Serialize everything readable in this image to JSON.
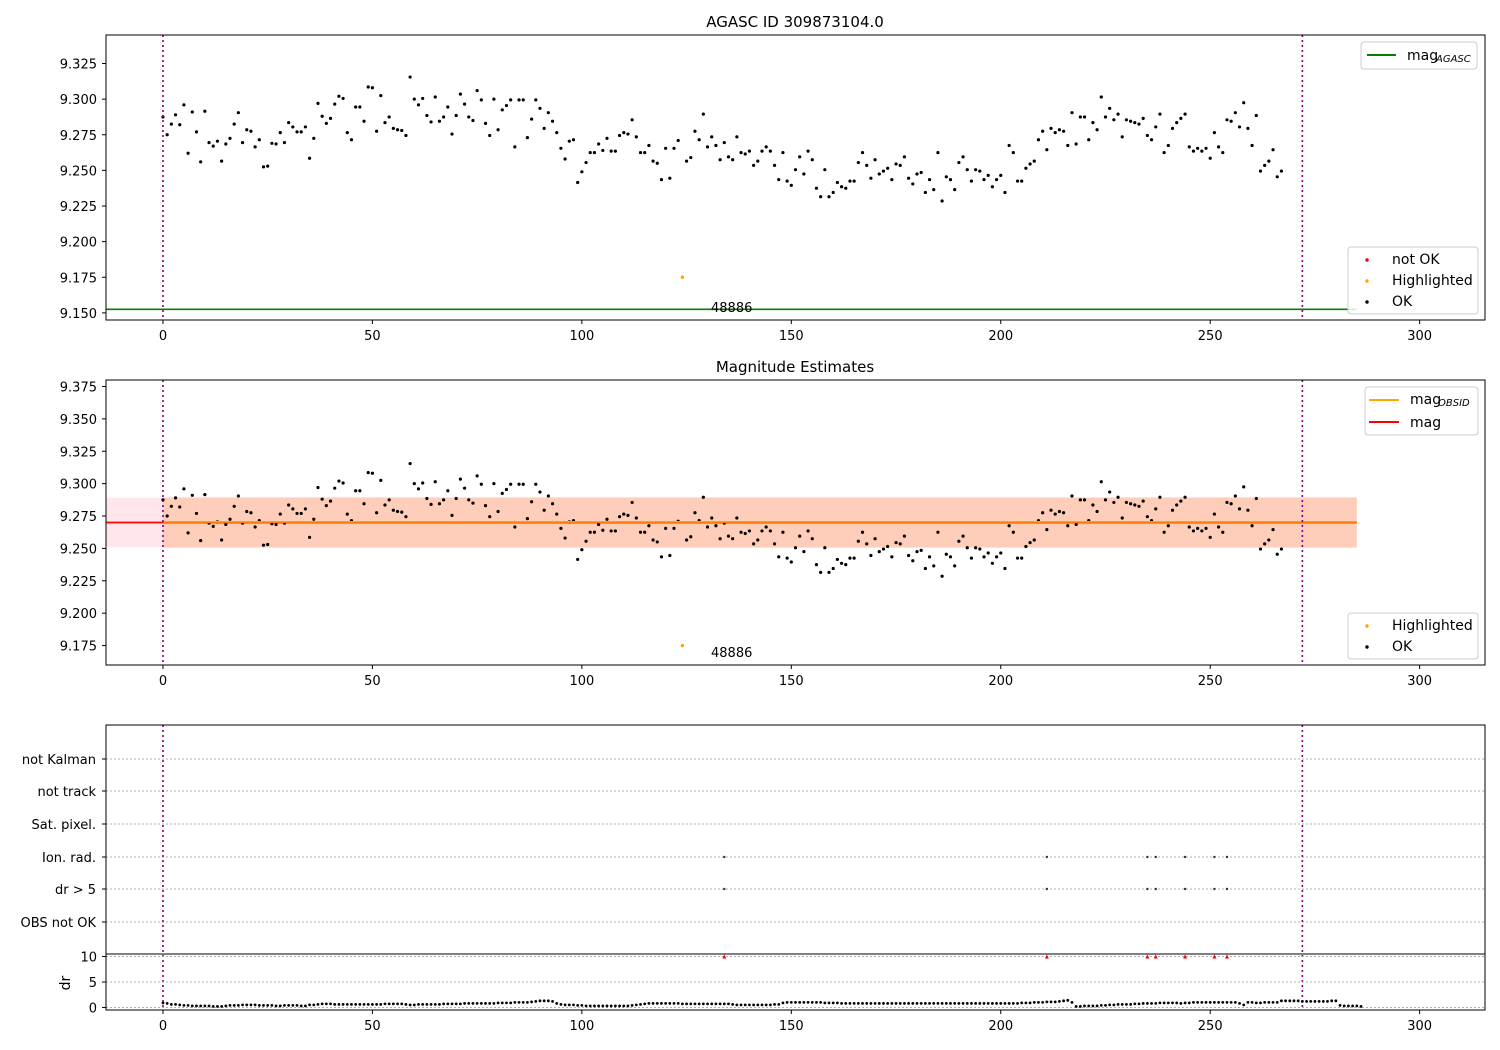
{
  "chart_data": [
    {
      "type": "scatter",
      "title": "AGASC ID 309873104.0",
      "xlim": [
        -13.6,
        315.6
      ],
      "ylim": [
        9.145,
        9.345
      ],
      "x_ticks": [
        0,
        50,
        100,
        150,
        200,
        250,
        300
      ],
      "x_tick_labels": [
        "0",
        "50",
        "100",
        "150",
        "200",
        "250",
        "300"
      ],
      "y_ticks": [
        9.15,
        9.175,
        9.2,
        9.225,
        9.25,
        9.275,
        9.3,
        9.325
      ],
      "y_tick_labels": [
        "9.150",
        "9.175",
        "9.200",
        "9.225",
        "9.250",
        "9.275",
        "9.300",
        "9.325"
      ],
      "vlines": [
        0,
        272
      ],
      "reference_line": {
        "name": "mag_AGASC",
        "value": 9.1525,
        "x_range": [
          -13.6,
          285
        ],
        "color": "#008000"
      },
      "highlighted_point": {
        "x": 124,
        "y": 9.175
      },
      "annotation": {
        "text": "48886",
        "x": 130,
        "y": 9.1525
      },
      "legend_upper": {
        "position": "upper-right",
        "entries": [
          {
            "label": "mag",
            "sub": "AGASC",
            "color": "#008000"
          }
        ]
      },
      "legend_lower": {
        "position": "lower-right",
        "entries": [
          {
            "label": "not OK",
            "color": "#ff0000"
          },
          {
            "label": "Highlighted",
            "color": "#ffa500"
          },
          {
            "label": "OK",
            "color": "#000000"
          }
        ]
      }
    },
    {
      "type": "scatter",
      "title": "Magnitude Estimates",
      "xlim": [
        -13.6,
        315.6
      ],
      "ylim": [
        9.16,
        9.38
      ],
      "x_ticks": [
        0,
        50,
        100,
        150,
        200,
        250,
        300
      ],
      "x_tick_labels": [
        "0",
        "50",
        "100",
        "150",
        "200",
        "250",
        "300"
      ],
      "y_ticks": [
        9.175,
        9.2,
        9.225,
        9.25,
        9.275,
        9.3,
        9.325,
        9.35,
        9.375
      ],
      "y_tick_labels": [
        "9.175",
        "9.200",
        "9.225",
        "9.250",
        "9.275",
        "9.300",
        "9.325",
        "9.350",
        "9.375"
      ],
      "vlines": [
        0,
        272
      ],
      "mag": {
        "value": 9.27,
        "band": [
          9.251,
          9.289
        ],
        "x_range": [
          -13.6,
          285
        ],
        "color": "#ff0000"
      },
      "mag_obsid": {
        "value": 9.2705,
        "band": [
          9.2505,
          9.2895
        ],
        "x_range": [
          0,
          285
        ],
        "color": "#ffa500"
      },
      "highlighted_point": {
        "x": 124,
        "y": 9.175
      },
      "annotation": {
        "text": "48886",
        "x": 130,
        "y": 9.17
      },
      "legend_upper": {
        "position": "upper-right",
        "entries": [
          {
            "label": "mag",
            "sub": "OBSID",
            "color": "#ffa500"
          },
          {
            "label": "mag",
            "sub": "",
            "color": "#ff0000"
          }
        ]
      },
      "legend_lower": {
        "position": "lower-right",
        "entries": [
          {
            "label": "Highlighted",
            "color": "#ffa500"
          },
          {
            "label": "OK",
            "color": "#000000"
          }
        ]
      }
    },
    {
      "type": "scatter",
      "xlim": [
        -13.6,
        315.6
      ],
      "categories": [
        "not Kalman",
        "not track",
        "Sat. pixel.",
        "Ion. rad.",
        "dr > 5",
        "OBS not OK"
      ],
      "flag_points": {
        "Ion. rad.": [
          134,
          211,
          235,
          237,
          244,
          251,
          254
        ],
        "dr > 5": [
          134,
          211,
          235,
          237,
          244,
          251,
          254
        ]
      },
      "vlines": [
        0,
        272
      ]
    },
    {
      "type": "scatter",
      "ylabel": "dr",
      "xlim": [
        -13.6,
        315.6
      ],
      "ylim": [
        -0.5,
        10.5
      ],
      "x_ticks": [
        0,
        50,
        100,
        150,
        200,
        250,
        300
      ],
      "x_tick_labels": [
        "0",
        "50",
        "100",
        "150",
        "200",
        "250",
        "300"
      ],
      "y_ticks": [
        0,
        5,
        10
      ],
      "y_tick_labels": [
        "0",
        "5",
        "10"
      ],
      "clipped_points": [
        134,
        211,
        235,
        237,
        244,
        251,
        254
      ],
      "vlines": [
        0,
        272
      ]
    }
  ],
  "series_mag": [
    9.2875,
    9.275,
    9.2825,
    9.289,
    9.282,
    9.296,
    9.262,
    9.291,
    9.277,
    9.256,
    9.2915,
    9.2695,
    9.267,
    9.2705,
    9.2565,
    9.2685,
    9.2725,
    9.2825,
    9.2905,
    9.2695,
    9.2785,
    9.2775,
    9.2665,
    9.2715,
    9.2525,
    9.253,
    9.269,
    9.2685,
    9.2765,
    9.2695,
    9.2835,
    9.2805,
    9.277,
    9.277,
    9.2805,
    9.2585,
    9.2725,
    9.297,
    9.288,
    9.283,
    9.2865,
    9.2965,
    9.302,
    9.3005,
    9.2765,
    9.2715,
    9.2945,
    9.2945,
    9.2845,
    9.3085,
    9.308,
    9.2775,
    9.3025,
    9.2835,
    9.2875,
    9.2795,
    9.2785,
    9.278,
    9.2745,
    9.3155,
    9.3,
    9.296,
    9.3005,
    9.2885,
    9.284,
    9.3015,
    9.2845,
    9.2875,
    9.2945,
    9.2755,
    9.2885,
    9.3035,
    9.2965,
    9.2875,
    9.285,
    9.306,
    9.2995,
    9.283,
    9.2745,
    9.3,
    9.2785,
    9.2925,
    9.2955,
    9.2995,
    9.2665,
    9.2995,
    9.2995,
    9.273,
    9.286,
    9.2995,
    9.2935,
    9.2795,
    9.2905,
    9.2845,
    9.2765,
    9.2655,
    9.258,
    9.2705,
    9.2715,
    9.2415,
    9.249,
    9.2555,
    9.2625,
    9.2625,
    9.2685,
    9.264,
    9.2725,
    9.2635,
    9.2635,
    9.2745,
    9.2765,
    9.2755,
    9.2855,
    9.2735,
    9.2625,
    9.2625,
    9.2675,
    9.2565,
    9.255,
    9.2435,
    9.2655,
    9.2445,
    9.2655,
    9.271,
    9.175,
    9.2565,
    9.259,
    9.2775,
    9.2715,
    9.2895,
    9.2665,
    9.2735,
    9.2675,
    9.2575,
    9.2695,
    9.2595,
    9.2575,
    9.2735,
    9.2625,
    9.2615,
    9.2635,
    9.2535,
    9.2565,
    9.2635,
    9.2665,
    9.2635,
    9.2535,
    9.2435,
    9.2625,
    9.2425,
    9.2395,
    9.2505,
    9.2595,
    9.2475,
    9.2635,
    9.2575,
    9.2375,
    9.2315,
    9.2505,
    9.2315,
    9.2345,
    9.2415,
    9.2385,
    9.2375,
    9.2425,
    9.2425,
    9.2555,
    9.2625,
    9.2535,
    9.2445,
    9.2575,
    9.2475,
    9.2495,
    9.2515,
    9.2435,
    9.2545,
    9.2535,
    9.2595,
    9.2445,
    9.2405,
    9.2475,
    9.2485,
    9.2345,
    9.2435,
    9.2365,
    9.2625,
    9.2285,
    9.2455,
    9.2435,
    9.2365,
    9.2555,
    9.2595,
    9.2505,
    9.2425,
    9.2505,
    9.2495,
    9.2435,
    9.2465,
    9.2385,
    9.2435,
    9.2465,
    9.2345,
    9.2675,
    9.2625,
    9.2425,
    9.2425,
    9.2515,
    9.2545,
    9.2565,
    9.2715,
    9.2775,
    9.2645,
    9.2795,
    9.2765,
    9.2785,
    9.2775,
    9.2675,
    9.2905,
    9.2685,
    9.2875,
    9.2875,
    9.2715,
    9.2835,
    9.2785,
    9.3015,
    9.2875,
    9.2935,
    9.2855,
    9.2895,
    9.2735,
    9.2855,
    9.2845,
    9.2835,
    9.2825,
    9.2865,
    9.2745,
    9.2715,
    9.2805,
    9.2895,
    9.2625,
    9.2675,
    9.2795,
    9.2835,
    9.2865,
    9.2895,
    9.2665,
    9.2635,
    9.2655,
    9.2635,
    9.2655,
    9.2585,
    9.2765,
    9.2665,
    9.2625,
    9.2855,
    9.2845,
    9.2905,
    9.2805,
    9.2975,
    9.2795,
    9.2675,
    9.2885,
    9.2495,
    9.2535,
    9.2565,
    9.2645,
    9.2455,
    9.2495
  ],
  "series_dr": [
    0.9,
    0.8,
    0.6,
    0.6,
    0.5,
    0.4,
    0.4,
    0.3,
    0.3,
    0.3,
    0.3,
    0.3,
    0.2,
    0.2,
    0.2,
    0.3,
    0.4,
    0.4,
    0.4,
    0.5,
    0.5,
    0.5,
    0.5,
    0.4,
    0.4,
    0.4,
    0.4,
    0.3,
    0.3,
    0.4,
    0.4,
    0.4,
    0.4,
    0.3,
    0.3,
    0.5,
    0.5,
    0.6,
    0.7,
    0.7,
    0.7,
    0.6,
    0.6,
    0.6,
    0.6,
    0.6,
    0.6,
    0.6,
    0.6,
    0.6,
    0.6,
    0.6,
    0.6,
    0.7,
    0.7,
    0.7,
    0.7,
    0.7,
    0.6,
    0.5,
    0.5,
    0.6,
    0.6,
    0.6,
    0.6,
    0.6,
    0.6,
    0.7,
    0.7,
    0.7,
    0.7,
    0.7,
    0.8,
    0.8,
    0.8,
    0.8,
    0.8,
    0.8,
    0.8,
    0.8,
    0.9,
    0.9,
    0.9,
    0.9,
    1.0,
    1.0,
    1.0,
    1.0,
    1.1,
    1.2,
    1.3,
    1.3,
    1.3,
    1.2,
    0.8,
    0.6,
    0.5,
    0.5,
    0.5,
    0.4,
    0.4,
    0.3,
    0.3,
    0.3,
    0.3,
    0.3,
    0.3,
    0.3,
    0.3,
    0.3,
    0.3,
    0.3,
    0.4,
    0.5,
    0.6,
    0.7,
    0.8,
    0.8,
    0.8,
    0.8,
    0.8,
    0.8,
    0.8,
    0.8,
    0.7,
    0.7,
    0.7,
    0.7,
    0.7,
    0.7,
    0.7,
    0.7,
    0.7,
    0.7,
    0.7,
    0.7,
    0.6,
    0.5,
    0.5,
    0.5,
    0.5,
    0.5,
    0.5,
    0.5,
    0.5,
    0.5,
    0.6,
    0.6,
    0.9,
    1.0,
    1.0,
    1.0,
    1.0,
    1.0,
    1.0,
    1.0,
    1.0,
    1.0,
    0.9,
    0.9,
    0.9,
    0.9,
    0.8,
    0.8,
    0.8,
    0.8,
    0.8,
    0.8,
    0.8,
    0.8,
    0.8,
    0.8,
    0.8,
    0.8,
    0.8,
    0.8,
    0.8,
    0.8,
    0.8,
    0.8,
    0.8,
    0.8,
    0.8,
    0.8,
    0.8,
    0.8,
    0.8,
    0.8,
    0.8,
    0.8,
    0.8,
    0.8,
    0.8,
    0.8,
    0.8,
    0.8,
    0.8,
    0.8,
    0.8,
    0.8,
    0.8,
    0.8,
    0.8,
    0.8,
    0.8,
    0.9,
    0.9,
    0.9,
    1.0,
    1.0,
    1.0,
    1.1,
    1.1,
    1.1,
    1.2,
    1.3,
    1.4,
    1.0,
    0.2,
    0.2,
    0.3,
    0.3,
    0.3,
    0.3,
    0.4,
    0.4,
    0.5,
    0.5,
    0.6,
    0.6,
    0.6,
    0.6,
    0.7,
    0.7,
    0.8,
    0.8,
    0.8,
    0.8,
    0.9,
    0.9,
    0.9,
    0.9,
    0.9,
    0.8,
    0.9,
    0.9,
    1.0,
    1.0,
    1.0,
    1.0,
    1.0,
    1.0,
    1.0,
    1.0,
    1.0,
    1.0,
    1.0,
    0.8,
    0.5,
    1.0,
    1.0,
    0.9,
    0.9,
    1.0,
    1.0,
    1.0,
    1.0,
    1.3,
    1.3,
    1.3,
    1.3,
    1.3,
    1.2,
    1.2,
    1.2,
    1.2,
    1.2,
    1.2,
    1.2,
    1.3,
    1.3,
    0.4,
    0.3,
    0.3,
    0.3,
    0.3,
    0.2
  ]
}
